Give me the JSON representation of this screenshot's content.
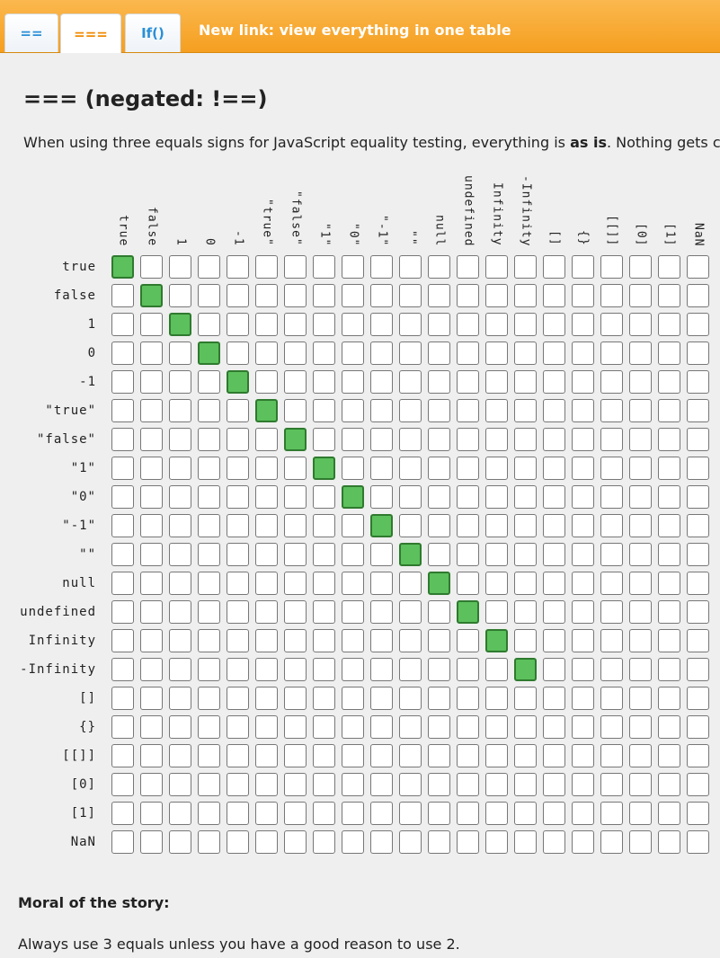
{
  "nav": {
    "tabs": [
      {
        "label": "==",
        "active": false
      },
      {
        "label": "===",
        "active": true
      },
      {
        "label": "If()",
        "active": false
      }
    ],
    "link_label": "New link: view everything in one table"
  },
  "page": {
    "heading": "=== (negated: !==)",
    "intro_before": "When using three equals signs for JavaScript equality testing, everything is ",
    "intro_bold1": "as is",
    "intro_middle": ". Nothing gets con",
    "moral_heading": "Moral of the story:",
    "moral_text": "Always use 3 equals unless you have a good reason to use 2."
  },
  "table": {
    "columns": [
      "true",
      "false",
      "1",
      "0",
      "-1",
      "\"true\"",
      "\"false\"",
      "\"1\"",
      "\"0\"",
      "\"-1\"",
      "\"\"",
      "null",
      "undefined",
      "Infinity",
      "-Infinity",
      "[]",
      "{}",
      "[[]]",
      "[0]",
      "[1]",
      "NaN"
    ],
    "rows": [
      "true",
      "false",
      "1",
      "0",
      "-1",
      "\"true\"",
      "\"false\"",
      "\"1\"",
      "\"0\"",
      "\"-1\"",
      "\"\"",
      "null",
      "undefined",
      "Infinity",
      "-Infinity",
      "[]",
      "{}",
      "[[]]",
      "[0]",
      "[1]",
      "NaN"
    ],
    "equal_pairs": [
      [
        0,
        0
      ],
      [
        1,
        1
      ],
      [
        2,
        2
      ],
      [
        3,
        3
      ],
      [
        4,
        4
      ],
      [
        5,
        5
      ],
      [
        6,
        6
      ],
      [
        7,
        7
      ],
      [
        8,
        8
      ],
      [
        9,
        9
      ],
      [
        10,
        10
      ],
      [
        11,
        11
      ],
      [
        12,
        12
      ],
      [
        13,
        13
      ],
      [
        14,
        14
      ]
    ],
    "colors": {
      "equal": "#5cc05c",
      "equal_border": "#2f7a2f",
      "empty": "#ffffff"
    }
  }
}
